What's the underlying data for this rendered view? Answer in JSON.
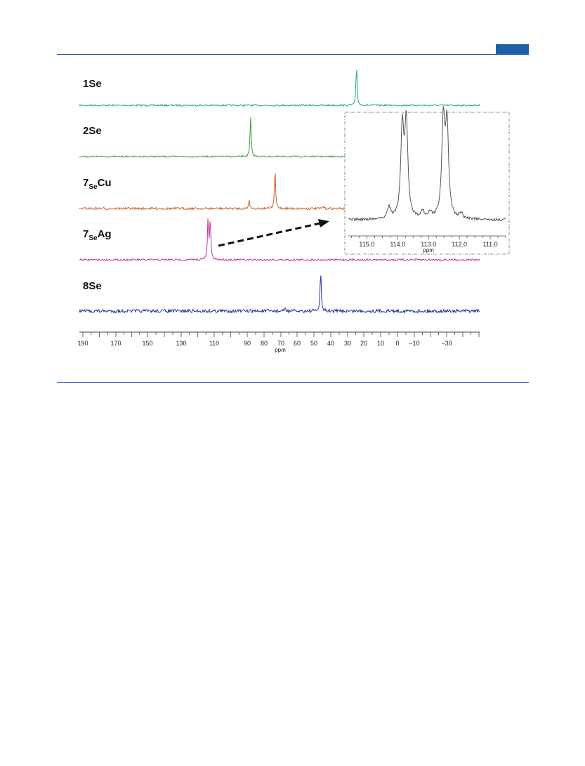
{
  "page": {
    "header_color": "#1f5fa8"
  },
  "chart_data": {
    "type": "line",
    "description_free": true,
    "xlabel": "ppm",
    "xlim": [
      190,
      -50
    ],
    "x_ticks": [
      190,
      170,
      150,
      130,
      110,
      90,
      80,
      70,
      60,
      50,
      40,
      30,
      20,
      10,
      0,
      -10,
      -30
    ],
    "x_tick_labels": [
      "190",
      "170",
      "150",
      "130",
      "110",
      "90",
      "80",
      "70",
      "60",
      "50",
      "40",
      "30",
      "20",
      "10",
      "0",
      "−10",
      "−30"
    ],
    "spectra": [
      {
        "label_main": "1Se",
        "label_sub": "",
        "label_tail": "",
        "color": "#1fa683",
        "peaks": [
          {
            "x": 24.5,
            "height": 1.0
          }
        ]
      },
      {
        "label_main": "2Se",
        "label_sub": "",
        "label_tail": "",
        "color": "#3a9a3a",
        "peaks": [
          {
            "x": 88.0,
            "height": 1.0
          }
        ]
      },
      {
        "label_main": "7",
        "label_sub": "Se",
        "label_tail": "Cu",
        "color": "#c8622a",
        "peaks": [
          {
            "x": 73.5,
            "height": 1.0
          },
          {
            "x": 88.8,
            "height": 0.22
          },
          {
            "x": 44.5,
            "height": 0.05
          }
        ]
      },
      {
        "label_main": "7",
        "label_sub": "Se",
        "label_tail": "Ag",
        "color": "#c0309a",
        "peaks": [
          {
            "x": 113.75,
            "height": 1.0
          },
          {
            "x": 112.4,
            "height": 1.0
          }
        ]
      },
      {
        "label_main": "8Se",
        "label_sub": "",
        "label_tail": "",
        "color": "#1f2f9a",
        "peaks": [
          {
            "x": 46.0,
            "height": 1.0
          },
          {
            "x": 67.5,
            "height": 0.06
          }
        ]
      }
    ],
    "inset": {
      "xlabel": "ppm",
      "xlim": [
        115.6,
        110.5
      ],
      "x_ticks": [
        115.0,
        114.0,
        113.0,
        112.0,
        111.0
      ],
      "x_tick_labels": [
        "115.0",
        "114.0",
        "113.0",
        "112.0",
        "111.0"
      ],
      "color": "#555555",
      "peaks": [
        {
          "x": 113.85,
          "height": 0.92
        },
        {
          "x": 113.72,
          "height": 0.98
        },
        {
          "x": 112.52,
          "height": 0.99
        },
        {
          "x": 112.4,
          "height": 0.93
        },
        {
          "x": 114.28,
          "height": 0.12
        },
        {
          "x": 113.2,
          "height": 0.08
        },
        {
          "x": 112.95,
          "height": 0.06
        },
        {
          "x": 111.95,
          "height": 0.06
        }
      ]
    }
  }
}
